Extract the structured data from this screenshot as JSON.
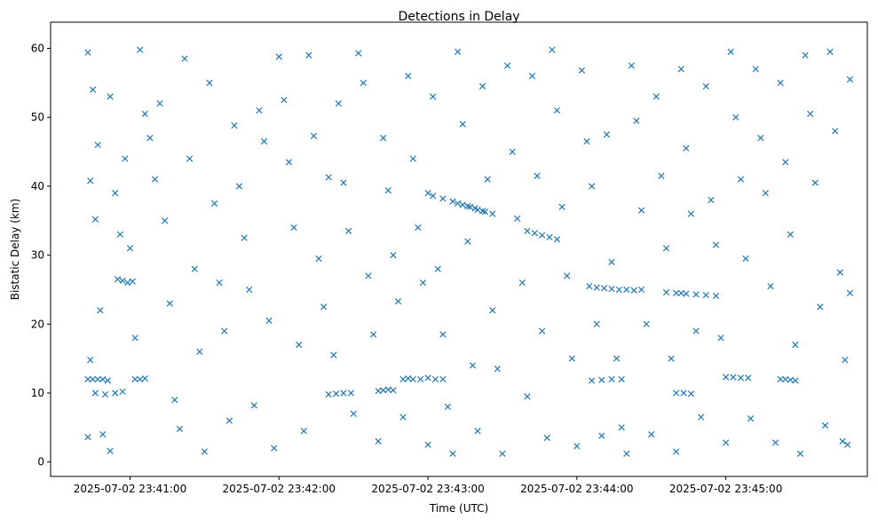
{
  "chart_data": {
    "type": "scatter",
    "title": "Detections in Delay",
    "xlabel": "Time (UTC)",
    "ylabel": "Bistatic Delay (km)",
    "x_unit": "seconds after 2025-07-02 23:40:00",
    "xlim": [
      28,
      357
    ],
    "ylim": [
      -2.1,
      63.8
    ],
    "grid": false,
    "marker": "x",
    "color": "#1f77b4",
    "xticks": [
      {
        "value": 60,
        "label": "2025-07-02 23:41:00"
      },
      {
        "value": 120,
        "label": "2025-07-02 23:42:00"
      },
      {
        "value": 180,
        "label": "2025-07-02 23:43:00"
      },
      {
        "value": 240,
        "label": "2025-07-02 23:44:00"
      },
      {
        "value": 300,
        "label": "2025-07-02 23:45:00"
      }
    ],
    "yticks": [
      {
        "value": 0,
        "label": "0"
      },
      {
        "value": 10,
        "label": "10"
      },
      {
        "value": 20,
        "label": "20"
      },
      {
        "value": 30,
        "label": "30"
      },
      {
        "value": 40,
        "label": "40"
      },
      {
        "value": 50,
        "label": "50"
      },
      {
        "value": 60,
        "label": "60"
      }
    ],
    "points": [
      [
        43,
        12
      ],
      [
        45,
        12
      ],
      [
        47,
        12
      ],
      [
        49,
        12
      ],
      [
        51,
        11.8
      ],
      [
        46,
        10
      ],
      [
        50,
        9.8
      ],
      [
        54,
        10
      ],
      [
        57,
        10.2
      ],
      [
        55,
        26.5
      ],
      [
        57,
        26.3
      ],
      [
        59,
        26
      ],
      [
        61,
        26.2
      ],
      [
        62,
        12
      ],
      [
        64,
        12
      ],
      [
        66,
        12.1
      ],
      [
        140,
        9.8
      ],
      [
        143,
        9.9
      ],
      [
        146,
        10
      ],
      [
        149,
        10
      ],
      [
        160,
        10.3
      ],
      [
        162,
        10.4
      ],
      [
        164,
        10.5
      ],
      [
        166,
        10.4
      ],
      [
        170,
        12
      ],
      [
        172,
        12.1
      ],
      [
        174,
        12
      ],
      [
        177,
        12
      ],
      [
        180,
        12.2
      ],
      [
        183,
        12
      ],
      [
        186,
        12
      ],
      [
        180,
        39
      ],
      [
        182,
        38.6
      ],
      [
        186,
        38.2
      ],
      [
        190,
        37.8
      ],
      [
        192,
        37.5
      ],
      [
        194,
        37.3
      ],
      [
        196,
        37.1
      ],
      [
        197,
        37
      ],
      [
        199,
        36.8
      ],
      [
        200,
        36.6
      ],
      [
        202,
        36.4
      ],
      [
        203,
        36.3
      ],
      [
        206,
        36
      ],
      [
        220,
        33.5
      ],
      [
        223,
        33.2
      ],
      [
        226,
        32.9
      ],
      [
        229,
        32.6
      ],
      [
        232,
        32.3
      ],
      [
        245,
        25.5
      ],
      [
        248,
        25.3
      ],
      [
        251,
        25.2
      ],
      [
        254,
        25.1
      ],
      [
        257,
        25
      ],
      [
        260,
        25
      ],
      [
        263,
        24.9
      ],
      [
        266,
        25
      ],
      [
        276,
        24.6
      ],
      [
        280,
        24.5
      ],
      [
        282,
        24.5
      ],
      [
        284,
        24.4
      ],
      [
        288,
        24.3
      ],
      [
        292,
        24.2
      ],
      [
        296,
        24.1
      ],
      [
        300,
        12.3
      ],
      [
        303,
        12.3
      ],
      [
        306,
        12.2
      ],
      [
        309,
        12.2
      ],
      [
        322,
        12
      ],
      [
        324,
        12
      ],
      [
        326,
        11.9
      ],
      [
        328,
        11.8
      ],
      [
        280,
        10
      ],
      [
        283,
        10
      ],
      [
        286,
        9.9
      ],
      [
        246,
        11.8
      ],
      [
        250,
        11.9
      ],
      [
        254,
        12
      ],
      [
        258,
        12
      ],
      [
        43,
        59.4
      ],
      [
        45,
        54
      ],
      [
        47,
        46
      ],
      [
        44,
        40.8
      ],
      [
        46,
        35.2
      ],
      [
        48,
        22
      ],
      [
        44,
        14.8
      ],
      [
        43,
        3.6
      ],
      [
        49,
        4
      ],
      [
        52,
        1.6
      ],
      [
        52,
        53
      ],
      [
        54,
        39
      ],
      [
        56,
        33
      ],
      [
        58,
        44
      ],
      [
        60,
        31
      ],
      [
        62,
        18
      ],
      [
        64,
        59.8
      ],
      [
        66,
        50.5
      ],
      [
        68,
        47
      ],
      [
        70,
        41
      ],
      [
        72,
        52
      ],
      [
        74,
        35
      ],
      [
        76,
        23
      ],
      [
        78,
        9
      ],
      [
        80,
        4.8
      ],
      [
        82,
        58.5
      ],
      [
        84,
        44
      ],
      [
        86,
        28
      ],
      [
        88,
        16
      ],
      [
        90,
        1.5
      ],
      [
        92,
        55
      ],
      [
        94,
        37.5
      ],
      [
        96,
        26
      ],
      [
        98,
        19
      ],
      [
        100,
        6
      ],
      [
        102,
        48.8
      ],
      [
        104,
        40
      ],
      [
        106,
        32.5
      ],
      [
        108,
        25
      ],
      [
        110,
        8.2
      ],
      [
        112,
        51
      ],
      [
        114,
        46.5
      ],
      [
        116,
        20.5
      ],
      [
        118,
        2
      ],
      [
        120,
        58.8
      ],
      [
        122,
        52.5
      ],
      [
        124,
        43.5
      ],
      [
        126,
        34
      ],
      [
        128,
        17
      ],
      [
        130,
        4.5
      ],
      [
        132,
        59
      ],
      [
        134,
        47.3
      ],
      [
        136,
        29.5
      ],
      [
        138,
        22.5
      ],
      [
        140,
        41.3
      ],
      [
        142,
        15.5
      ],
      [
        144,
        52
      ],
      [
        146,
        40.5
      ],
      [
        148,
        33.5
      ],
      [
        150,
        7
      ],
      [
        152,
        59.3
      ],
      [
        154,
        55
      ],
      [
        156,
        27
      ],
      [
        158,
        18.5
      ],
      [
        160,
        3
      ],
      [
        162,
        47
      ],
      [
        164,
        39.4
      ],
      [
        166,
        30
      ],
      [
        168,
        23.3
      ],
      [
        170,
        6.5
      ],
      [
        172,
        56
      ],
      [
        174,
        44
      ],
      [
        176,
        34
      ],
      [
        178,
        26
      ],
      [
        180,
        2.5
      ],
      [
        182,
        53
      ],
      [
        184,
        28
      ],
      [
        186,
        18.5
      ],
      [
        188,
        8
      ],
      [
        190,
        1.2
      ],
      [
        192,
        59.5
      ],
      [
        194,
        49
      ],
      [
        196,
        32
      ],
      [
        198,
        14
      ],
      [
        200,
        4.5
      ],
      [
        202,
        54.5
      ],
      [
        204,
        41
      ],
      [
        206,
        22
      ],
      [
        208,
        13.5
      ],
      [
        210,
        1.2
      ],
      [
        212,
        57.5
      ],
      [
        214,
        45
      ],
      [
        216,
        35.3
      ],
      [
        218,
        26
      ],
      [
        220,
        9.5
      ],
      [
        222,
        56
      ],
      [
        224,
        41.5
      ],
      [
        226,
        19
      ],
      [
        228,
        3.5
      ],
      [
        230,
        59.8
      ],
      [
        232,
        51
      ],
      [
        234,
        37
      ],
      [
        236,
        27
      ],
      [
        238,
        15
      ],
      [
        240,
        2.3
      ],
      [
        242,
        56.8
      ],
      [
        244,
        46.5
      ],
      [
        246,
        40
      ],
      [
        248,
        20
      ],
      [
        250,
        3.8
      ],
      [
        252,
        47.5
      ],
      [
        254,
        29
      ],
      [
        256,
        15
      ],
      [
        258,
        5
      ],
      [
        260,
        1.2
      ],
      [
        262,
        57.5
      ],
      [
        264,
        49.5
      ],
      [
        266,
        36.5
      ],
      [
        268,
        20
      ],
      [
        270,
        4
      ],
      [
        272,
        53
      ],
      [
        274,
        41.5
      ],
      [
        276,
        31
      ],
      [
        278,
        15
      ],
      [
        280,
        1.5
      ],
      [
        282,
        57
      ],
      [
        284,
        45.5
      ],
      [
        286,
        36
      ],
      [
        288,
        19
      ],
      [
        290,
        6.5
      ],
      [
        292,
        54.5
      ],
      [
        294,
        38
      ],
      [
        296,
        31.5
      ],
      [
        298,
        18
      ],
      [
        300,
        2.8
      ],
      [
        302,
        59.5
      ],
      [
        304,
        50
      ],
      [
        306,
        41
      ],
      [
        308,
        29.5
      ],
      [
        310,
        6.3
      ],
      [
        312,
        57
      ],
      [
        314,
        47
      ],
      [
        316,
        39
      ],
      [
        318,
        25.5
      ],
      [
        320,
        2.8
      ],
      [
        322,
        55
      ],
      [
        324,
        43.5
      ],
      [
        326,
        33
      ],
      [
        328,
        17
      ],
      [
        330,
        1.2
      ],
      [
        332,
        59
      ],
      [
        334,
        50.5
      ],
      [
        336,
        40.5
      ],
      [
        338,
        22.5
      ],
      [
        340,
        5.3
      ],
      [
        342,
        59.5
      ],
      [
        344,
        48
      ],
      [
        346,
        27.5
      ],
      [
        348,
        14.8
      ],
      [
        349,
        2.5
      ],
      [
        350,
        55.5
      ],
      [
        350,
        24.5
      ],
      [
        347,
        3
      ]
    ]
  }
}
